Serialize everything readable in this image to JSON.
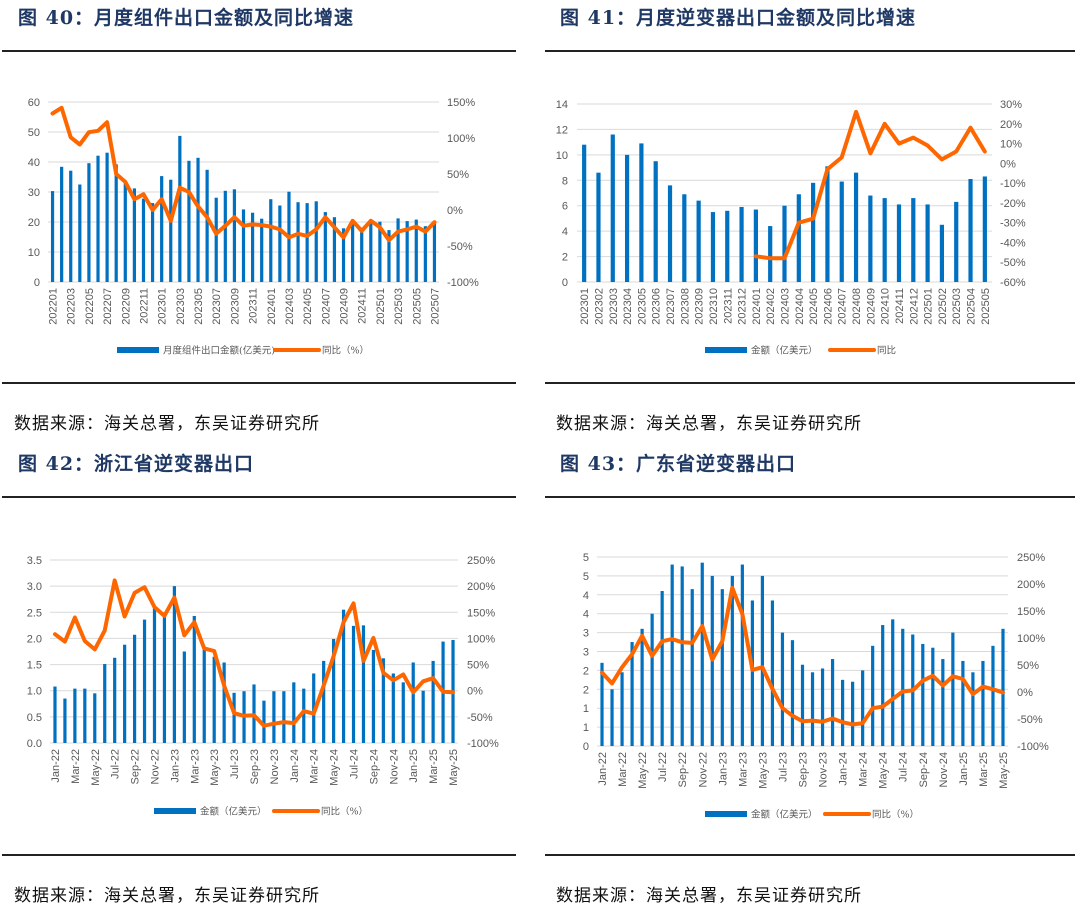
{
  "figures": [
    {
      "title": "图 40：月度组件出口金额及同比增速",
      "source": "数据来源：海关总署，东吴证券研究所"
    },
    {
      "title": "图 41：月度逆变器出口金额及同比增速",
      "source": "数据来源：海关总署，东吴证券研究所"
    },
    {
      "title": "图 42：浙江省逆变器出口",
      "source": "数据来源：海关总署，东吴证券研究所"
    },
    {
      "title": "图 43：广东省逆变器出口",
      "source": "数据来源：海关总署，东吴证券研究所"
    }
  ],
  "colors": {
    "bar": "#0070c0",
    "line": "#fe6600",
    "grid": "#d9d9d9",
    "title": "#1f3864"
  },
  "chart_data": [
    {
      "type": "bar+line",
      "title": "图 40：月度组件出口金额及同比增速",
      "categories": [
        "202201",
        "202202",
        "202203",
        "202204",
        "202205",
        "202206",
        "202207",
        "202208",
        "202209",
        "202210",
        "202211",
        "202212",
        "202301",
        "202302",
        "202303",
        "202304",
        "202305",
        "202306",
        "202307",
        "202308",
        "202309",
        "202310",
        "202311",
        "202312",
        "202401",
        "202402",
        "202403",
        "202404",
        "202405",
        "202406",
        "202407",
        "202408",
        "202409",
        "202410",
        "202411",
        "202412",
        "202501",
        "202502",
        "202503",
        "202504",
        "202505",
        "202506",
        "202507"
      ],
      "tick_labels": [
        "202201",
        "202203",
        "202205",
        "202207",
        "202209",
        "202211",
        "202301",
        "202303",
        "202305",
        "202307",
        "202309",
        "202311",
        "202401",
        "202403",
        "202405",
        "202407",
        "202409",
        "202411",
        "202501",
        "202503",
        "202505",
        "202507"
      ],
      "series": [
        {
          "name": "月度组件出口金额(亿美元)",
          "type": "bar",
          "axis": "left",
          "values": [
            30.3,
            38.4,
            37.1,
            32.5,
            39.6,
            42.1,
            43.1,
            39.2,
            33.5,
            31.2,
            27.8,
            26.3,
            35.3,
            34.1,
            48.7,
            40.4,
            41.4,
            37.4,
            28.1,
            30.4,
            30.9,
            24.2,
            23.1,
            21.1,
            27.6,
            25.5,
            30.1,
            26.6,
            26.3,
            26.9,
            23.3,
            21.6,
            17.9,
            19.7,
            18.1,
            19.8,
            20.1,
            17.3,
            21.2,
            20.3,
            20.8,
            18.6,
            20.1
          ]
        },
        {
          "name": "同比（%）",
          "type": "line",
          "axis": "right",
          "values": [
            134,
            142,
            101,
            91,
            108,
            110,
            122,
            50,
            39,
            15,
            22,
            0,
            15,
            -15,
            31,
            25,
            5,
            -10,
            -33,
            -22,
            -10,
            -22,
            -20,
            -21,
            -23,
            -27,
            -38,
            -33,
            -36,
            -27,
            -10,
            -24,
            -38,
            -15,
            -29,
            -15,
            -24,
            -42,
            -30,
            -27,
            -23,
            -30,
            -17
          ]
        }
      ],
      "left_axis": {
        "min": 0,
        "max": 60,
        "step": 10,
        "tick_labels": [
          "0",
          "10",
          "20",
          "30",
          "40",
          "50",
          "60"
        ]
      },
      "right_axis": {
        "min": -100,
        "max": 150,
        "step": 50,
        "tick_labels": [
          "-100%",
          "-50%",
          "0%",
          "50%",
          "100%",
          "150%"
        ]
      },
      "legend": [
        "月度组件出口金额(亿美元)",
        "同比（%）"
      ],
      "legend_position": "bottom",
      "grid": true
    },
    {
      "type": "bar+line",
      "title": "图 41：月度逆变器出口金额及同比增速",
      "categories": [
        "202301",
        "202302",
        "202303",
        "202304",
        "202305",
        "202306",
        "202307",
        "202308",
        "202309",
        "202310",
        "202311",
        "202312",
        "202401",
        "202402",
        "202403",
        "202404",
        "202405",
        "202406",
        "202407",
        "202408",
        "202409",
        "202410",
        "202411",
        "202412",
        "202501",
        "202502",
        "202503",
        "202504",
        "202505"
      ],
      "tick_labels": [
        "202301",
        "202302",
        "202303",
        "202304",
        "202305",
        "202306",
        "202307",
        "202308",
        "202309",
        "202310",
        "202311",
        "202312",
        "202401",
        "202402",
        "202403",
        "202404",
        "202405",
        "202406",
        "202407",
        "202408",
        "202409",
        "202410",
        "202411",
        "202412",
        "202501",
        "202502",
        "202503",
        "202504",
        "202505"
      ],
      "series": [
        {
          "name": "金额（亿美元）",
          "type": "bar",
          "axis": "left",
          "values": [
            10.8,
            8.6,
            11.6,
            10.0,
            10.9,
            9.5,
            7.6,
            6.9,
            6.4,
            5.5,
            5.6,
            5.9,
            5.7,
            4.4,
            6.0,
            6.9,
            7.8,
            9.1,
            7.9,
            8.6,
            6.8,
            6.6,
            6.1,
            6.6,
            6.1,
            4.5,
            6.3,
            8.1,
            8.3
          ]
        },
        {
          "name": "同比",
          "type": "line",
          "axis": "right",
          "values": [
            null,
            null,
            null,
            null,
            null,
            null,
            null,
            null,
            null,
            null,
            null,
            null,
            -47,
            -48,
            -48,
            -30,
            -28,
            -3,
            3,
            26,
            5,
            20,
            10,
            13,
            9,
            2,
            6,
            18,
            6
          ]
        }
      ],
      "left_axis": {
        "min": 0,
        "max": 14,
        "step": 2,
        "tick_labels": [
          "0",
          "2",
          "4",
          "6",
          "8",
          "10",
          "12",
          "14"
        ]
      },
      "right_axis": {
        "min": -60,
        "max": 30,
        "step": 10,
        "tick_labels": [
          "-60%",
          "-50%",
          "-40%",
          "-30%",
          "-20%",
          "-10%",
          "0%",
          "10%",
          "20%",
          "30%"
        ]
      },
      "legend": [
        "金额（亿美元）",
        "同比"
      ],
      "legend_position": "bottom",
      "grid": true
    },
    {
      "type": "bar+line",
      "title": "图 42：浙江省逆变器出口",
      "categories": [
        "Jan-22",
        "Feb-22",
        "Mar-22",
        "Apr-22",
        "May-22",
        "Jun-22",
        "Jul-22",
        "Aug-22",
        "Sep-22",
        "Oct-22",
        "Nov-22",
        "Dec-22",
        "Jan-23",
        "Feb-23",
        "Mar-23",
        "Apr-23",
        "May-23",
        "Jun-23",
        "Jul-23",
        "Aug-23",
        "Sep-23",
        "Oct-23",
        "Nov-23",
        "Dec-23",
        "Jan-24",
        "Feb-24",
        "Mar-24",
        "Apr-24",
        "May-24",
        "Jun-24",
        "Jul-24",
        "Aug-24",
        "Sep-24",
        "Oct-24",
        "Nov-24",
        "Dec-24",
        "Jan-25",
        "Feb-25",
        "Mar-25",
        "Apr-25",
        "May-25"
      ],
      "tick_labels": [
        "Jan-22",
        "Mar-22",
        "May-22",
        "Jul-22",
        "Sep-22",
        "Nov-22",
        "Jan-23",
        "Mar-23",
        "May-23",
        "Jul-23",
        "Sep-23",
        "Nov-23",
        "Jan-24",
        "Mar-24",
        "May-24",
        "Jul-24",
        "Sep-24",
        "Nov-24",
        "Jan-25",
        "Mar-25",
        "May-25"
      ],
      "series": [
        {
          "name": "金额（亿美元）",
          "type": "bar",
          "axis": "left",
          "values": [
            1.08,
            0.85,
            1.04,
            1.04,
            0.95,
            1.51,
            1.63,
            1.88,
            2.07,
            2.36,
            2.6,
            2.46,
            3.0,
            1.75,
            2.43,
            1.8,
            1.65,
            1.54,
            0.96,
            0.99,
            1.12,
            0.81,
            0.99,
            0.99,
            1.16,
            1.04,
            1.33,
            1.57,
            1.99,
            2.55,
            2.24,
            2.25,
            1.78,
            1.62,
            1.33,
            1.16,
            1.54,
            1.0,
            1.57,
            1.94,
            1.97
          ]
        },
        {
          "name": "同比（%）",
          "type": "line",
          "axis": "right",
          "values": [
            108,
            94,
            140,
            95,
            79,
            115,
            211,
            142,
            187,
            198,
            160,
            143,
            178,
            106,
            131,
            81,
            76,
            10,
            -43,
            -48,
            -47,
            -67,
            -63,
            -60,
            -62,
            -39,
            -44,
            10,
            66,
            131,
            167,
            57,
            101,
            34,
            20,
            31,
            -3,
            18,
            24,
            -2,
            -3
          ]
        }
      ],
      "left_axis": {
        "min": 0,
        "max": 3.5,
        "step": 0.5,
        "tick_labels": [
          "0.0",
          "0.5",
          "1.0",
          "1.5",
          "2.0",
          "2.5",
          "3.0",
          "3.5"
        ]
      },
      "right_axis": {
        "min": -100,
        "max": 250,
        "step": 50,
        "tick_labels": [
          "-100%",
          "-50%",
          "0%",
          "50%",
          "100%",
          "150%",
          "200%",
          "250%"
        ]
      },
      "legend": [
        "金额（亿美元）",
        "同比（%）"
      ],
      "legend_position": "bottom",
      "grid": true
    },
    {
      "type": "bar+line",
      "title": "图 43：广东省逆变器出口",
      "categories": [
        "Jan-22",
        "Feb-22",
        "Mar-22",
        "Apr-22",
        "May-22",
        "Jun-22",
        "Jul-22",
        "Aug-22",
        "Sep-22",
        "Oct-22",
        "Nov-22",
        "Dec-22",
        "Jan-23",
        "Feb-23",
        "Mar-23",
        "Apr-23",
        "May-23",
        "Jun-23",
        "Jul-23",
        "Aug-23",
        "Sep-23",
        "Oct-23",
        "Nov-23",
        "Dec-23",
        "Jan-24",
        "Feb-24",
        "Mar-24",
        "Apr-24",
        "May-24",
        "Jun-24",
        "Jul-24",
        "Aug-24",
        "Sep-24",
        "Oct-24",
        "Nov-24",
        "Dec-24",
        "Jan-25",
        "Feb-25",
        "Mar-25",
        "Apr-25",
        "May-25"
      ],
      "tick_labels": [
        "Jan-22",
        "Mar-22",
        "May-22",
        "Jul-22",
        "Sep-22",
        "Nov-22",
        "Jan-23",
        "Mar-23",
        "May-23",
        "Jul-23",
        "Sep-23",
        "Nov-23",
        "Jan-24",
        "Mar-24",
        "May-24",
        "Jul-24",
        "Sep-24",
        "Nov-24",
        "Jan-25",
        "Mar-25",
        "May-25"
      ],
      "series": [
        {
          "name": "金额（亿美元）",
          "type": "bar",
          "axis": "left",
          "values": [
            2.2,
            1.5,
            1.95,
            2.75,
            3.1,
            3.5,
            4.1,
            4.8,
            4.75,
            4.15,
            4.85,
            4.5,
            4.15,
            4.5,
            4.8,
            3.85,
            4.5,
            3.85,
            3.0,
            2.8,
            2.15,
            1.95,
            2.05,
            2.3,
            1.75,
            1.7,
            2.0,
            2.65,
            3.2,
            3.35,
            3.1,
            2.95,
            2.7,
            2.6,
            2.3,
            3.0,
            2.25,
            1.95,
            2.25,
            2.65,
            3.1
          ]
        },
        {
          "name": "同比（%）",
          "type": "line",
          "axis": "right",
          "values": [
            36,
            16,
            46,
            70,
            104,
            67,
            94,
            98,
            92,
            91,
            122,
            60,
            94,
            193,
            144,
            41,
            46,
            6,
            -30,
            -44,
            -54,
            -53,
            -55,
            -49,
            -56,
            -60,
            -58,
            -30,
            -27,
            -13,
            1,
            3,
            21,
            30,
            12,
            29,
            24,
            -4,
            10,
            5,
            -1
          ]
        }
      ],
      "left_axis": {
        "min": 0,
        "max": 5.0,
        "step": 0.5,
        "tick_labels": [
          "0",
          "1",
          "1",
          "2",
          "2",
          "3",
          "3",
          "4",
          "4",
          "5",
          "5"
        ]
      },
      "right_axis": {
        "min": -100,
        "max": 250,
        "step": 50,
        "tick_labels": [
          "-100%",
          "-50%",
          "0%",
          "50%",
          "100%",
          "150%",
          "200%",
          "250%"
        ]
      },
      "legend": [
        "金额（亿美元）",
        "同比（%）"
      ],
      "legend_position": "bottom",
      "grid": true
    }
  ]
}
